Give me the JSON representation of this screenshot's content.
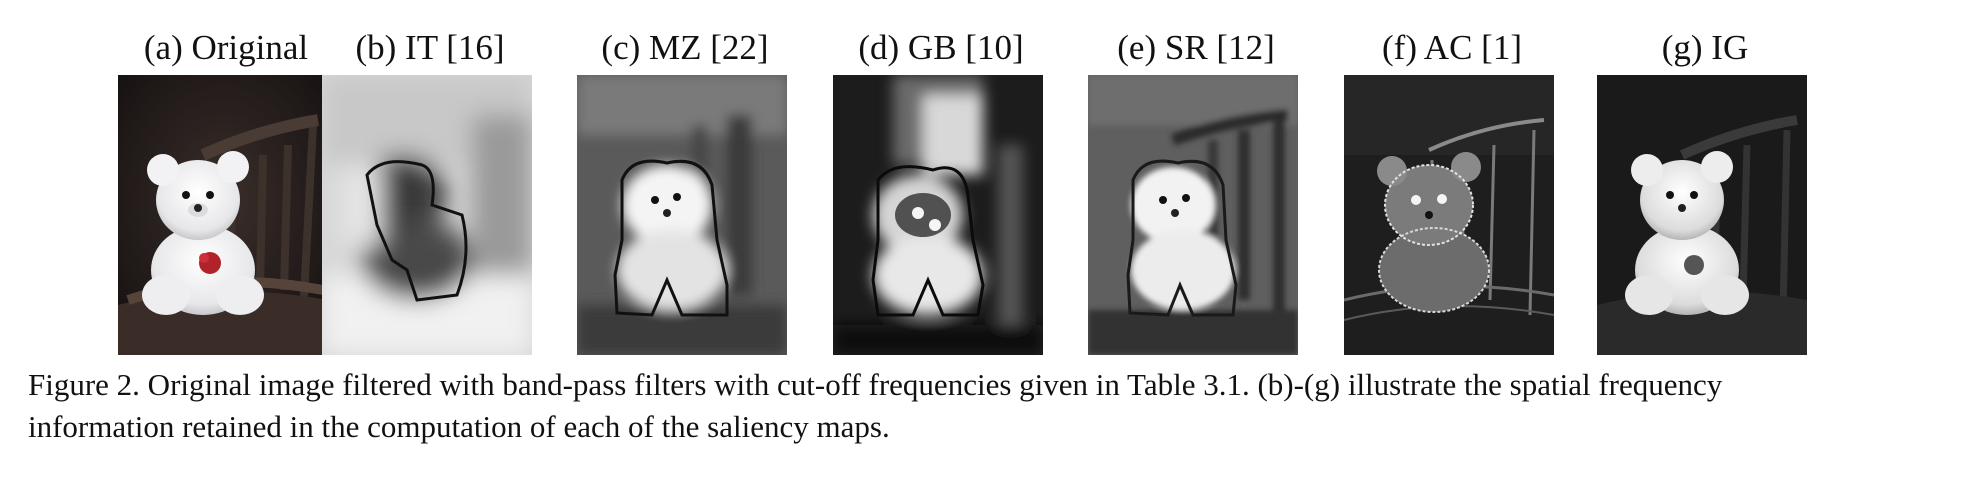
{
  "figure": {
    "panels": [
      {
        "label": "(a) Original",
        "variant": "original"
      },
      {
        "label": "(b) IT [16]",
        "variant": "it"
      },
      {
        "label": "(c) MZ [22]",
        "variant": "mz"
      },
      {
        "label": "(d) GB [10]",
        "variant": "gb"
      },
      {
        "label": "(e) SR [12]",
        "variant": "sr"
      },
      {
        "label": "(f) AC [1]",
        "variant": "ac"
      },
      {
        "label": "(g) IG",
        "variant": "ig"
      }
    ],
    "caption_line1": "Figure 2. Original image filtered with band-pass filters with cut-off frequencies given in Table 3.1. (b)-(g) illustrate the spatial frequency",
    "caption_line2": "information retained in the computation of each of the saliency maps."
  }
}
